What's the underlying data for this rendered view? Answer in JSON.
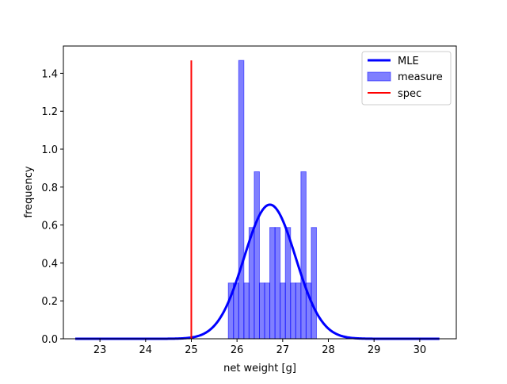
{
  "chart_data": {
    "type": "bar",
    "xlabel": "net weight [g]",
    "ylabel": "frequency",
    "xlim": [
      22.2,
      30.8
    ],
    "ylim": [
      0,
      1.544
    ],
    "xticks": [
      23,
      24,
      25,
      26,
      27,
      28,
      29,
      30
    ],
    "yticks": [
      0.0,
      0.2,
      0.4,
      0.6,
      0.8,
      1.0,
      1.2,
      1.4
    ],
    "ytick_labels": [
      "0.0",
      "0.2",
      "0.4",
      "0.6",
      "0.8",
      "1.0",
      "1.2",
      "1.4"
    ],
    "legend_position": "top-right",
    "histogram": {
      "name": "measure",
      "color": "#0000ff",
      "bin_width": 0.1135,
      "bin_starts": [
        25.81,
        25.9235,
        26.037,
        26.1505,
        26.264,
        26.3775,
        26.491,
        26.6045,
        26.718,
        26.8315,
        26.945,
        27.0585,
        27.172,
        27.2855,
        27.399,
        27.5125,
        27.626
      ],
      "values": [
        0.294,
        0.294,
        1.468,
        0.294,
        0.587,
        0.881,
        0.294,
        0.294,
        0.587,
        0.587,
        0.294,
        0.587,
        0.294,
        0.294,
        0.881,
        0.294,
        0.587
      ]
    },
    "mle_curve": {
      "name": "MLE",
      "color": "#0000ff",
      "mean": 26.72,
      "std": 0.564,
      "x_range": [
        22.46,
        30.43
      ]
    },
    "spec_line": {
      "name": "spec",
      "color": "#ff0000",
      "x": 25.0,
      "y_range": [
        0,
        1.468
      ]
    }
  }
}
